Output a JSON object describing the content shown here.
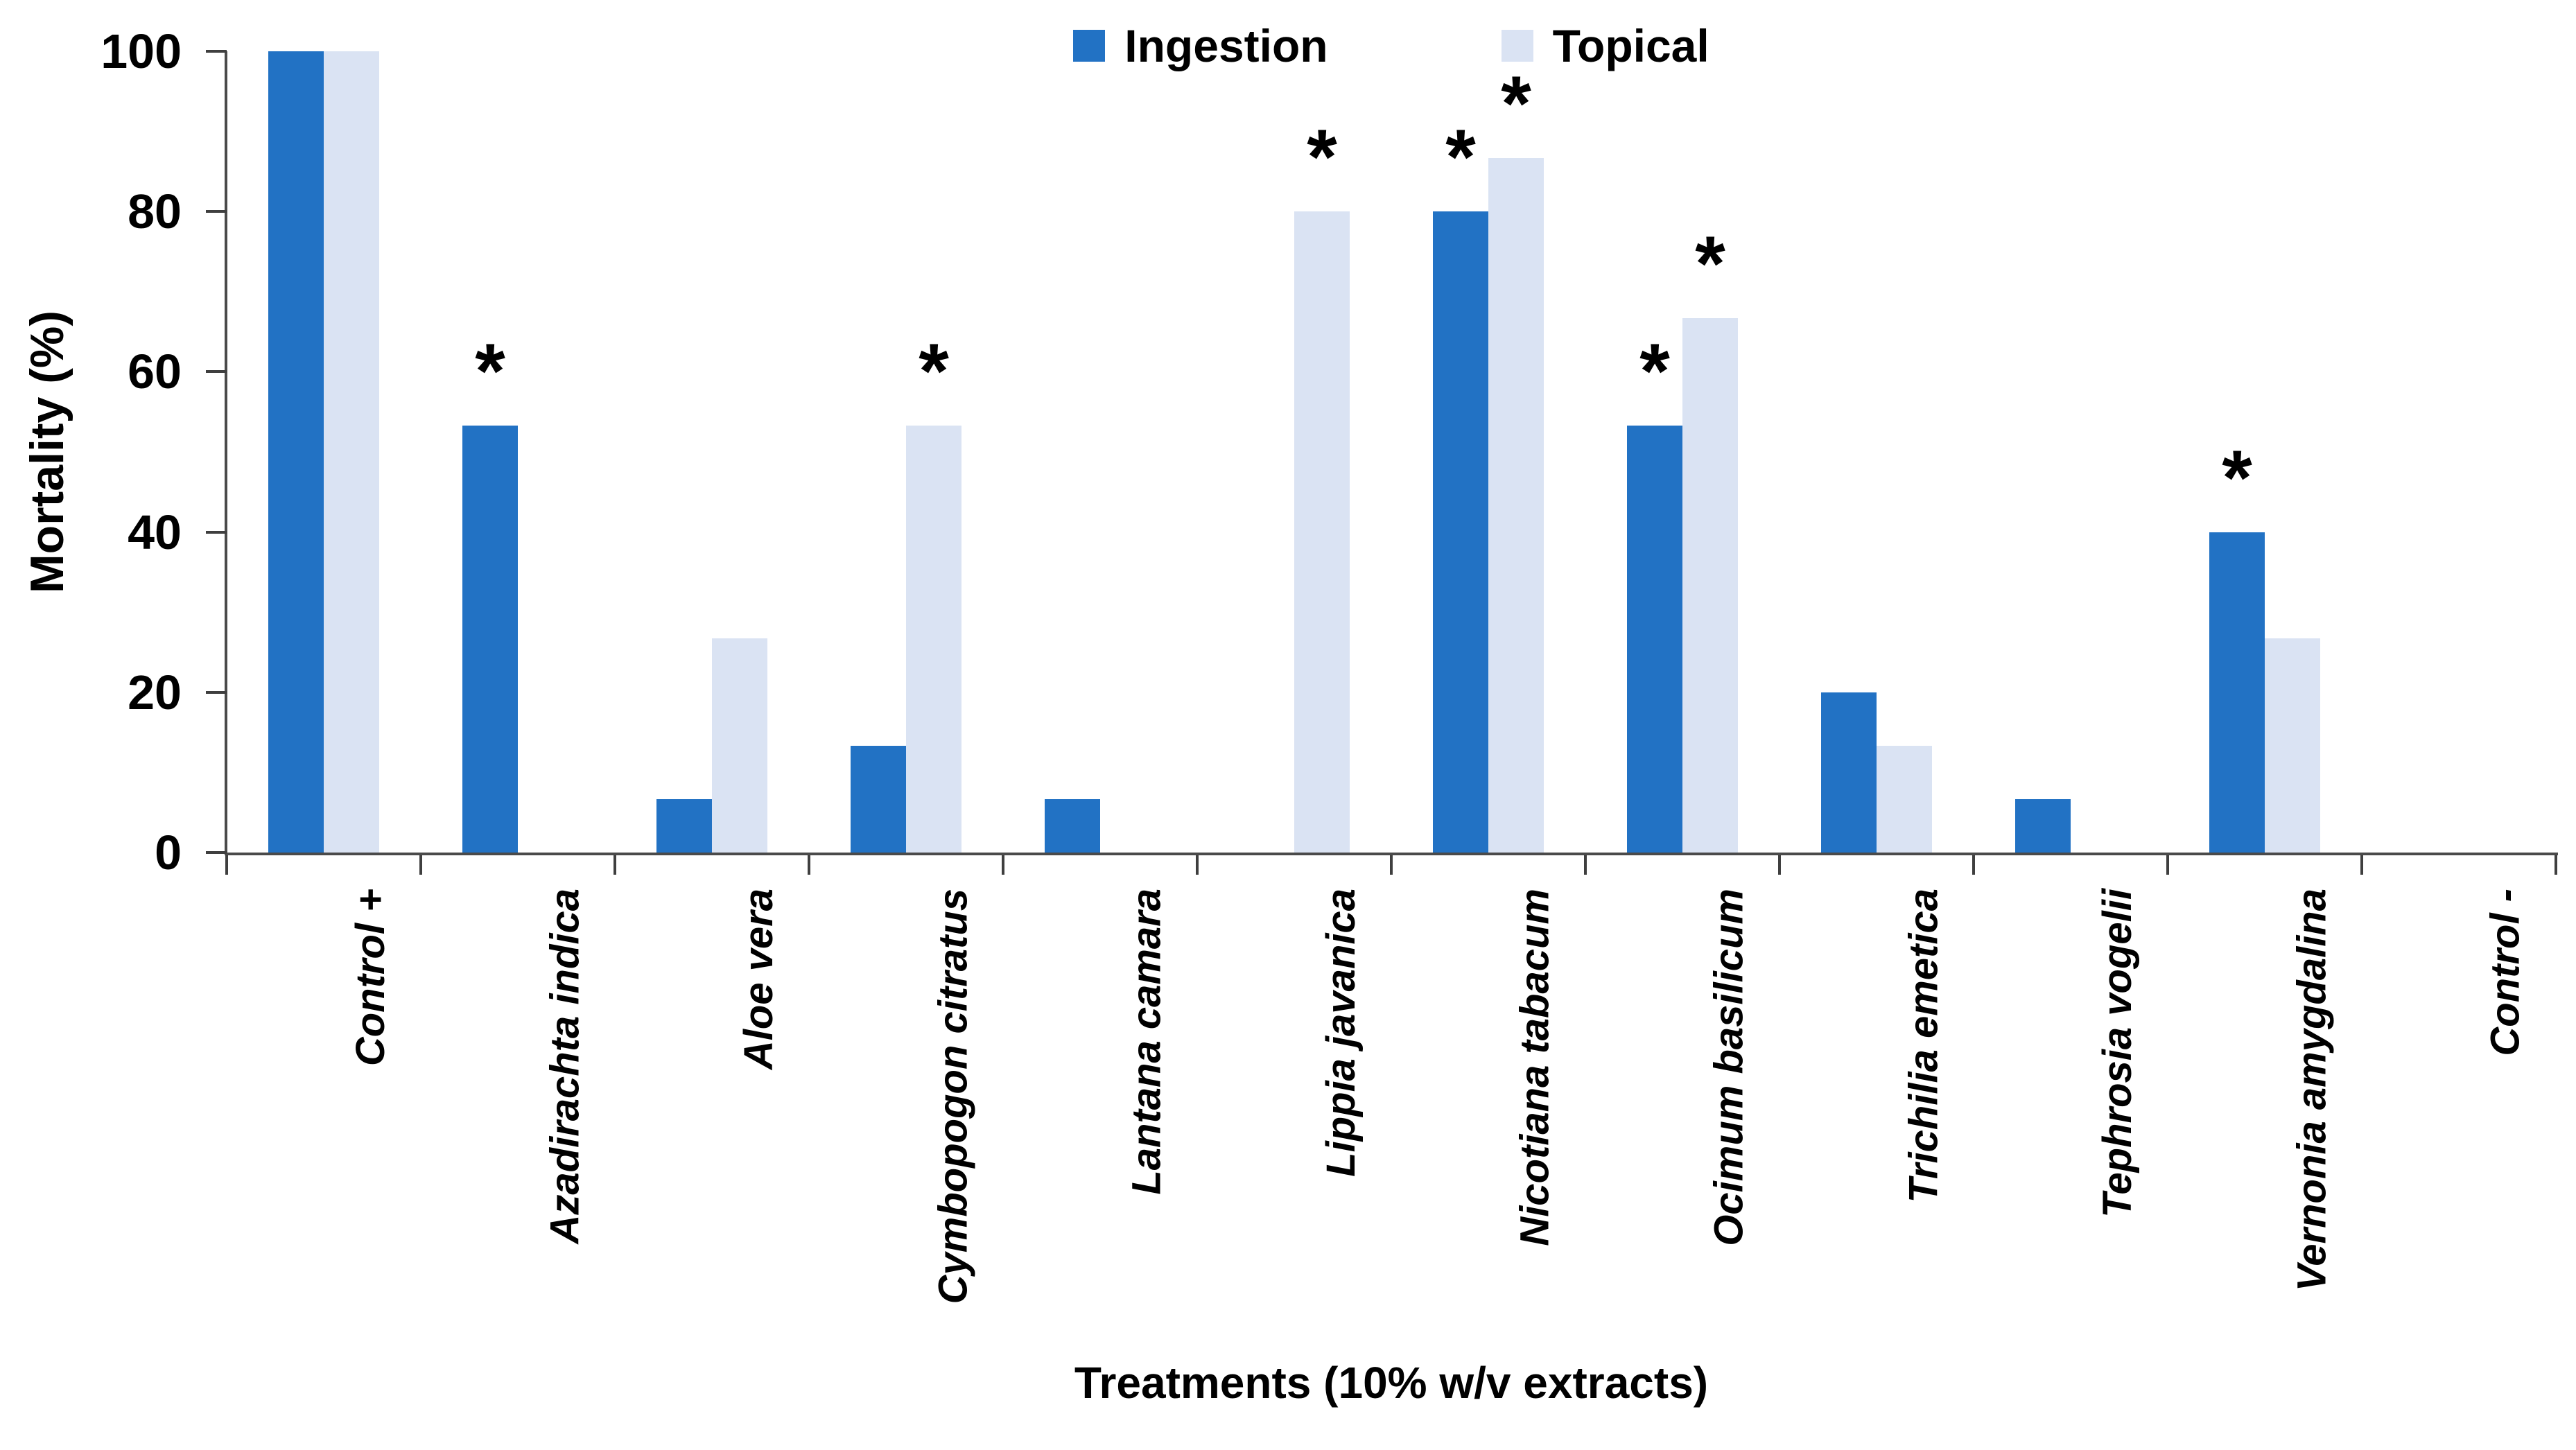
{
  "chart_data": {
    "type": "bar",
    "title": "",
    "xlabel": "Treatments (10% w/v extracts)",
    "ylabel": "Mortality (%)",
    "ylim": [
      0,
      100
    ],
    "yticks": [
      0,
      20,
      40,
      60,
      80,
      100
    ],
    "grid": false,
    "legend_position": "top-center",
    "annotation_symbol": "*",
    "annotation_meaning": "significant bar marked with asterisk",
    "categories": [
      "Control +",
      "Azadirachta indica",
      "Aloe vera",
      "Cymbopogon citratus",
      "Lantana camara",
      "Lippia javanica",
      "Nicotiana tabacum",
      "Ocimum basilicum",
      "Trichilia emetica",
      "Tephrosia vogelii",
      "Vernonia amygdalina",
      "Control -"
    ],
    "series": [
      {
        "name": "Ingestion",
        "color": "#2272C4",
        "values": [
          100,
          53.3,
          6.7,
          13.3,
          6.7,
          0,
          80,
          53.3,
          20,
          6.7,
          40,
          0
        ],
        "significant": [
          true,
          true,
          false,
          false,
          false,
          false,
          true,
          true,
          false,
          false,
          true,
          false
        ]
      },
      {
        "name": "Topical",
        "color": "#DAE3F3",
        "values": [
          100,
          0,
          26.7,
          53.3,
          0,
          80,
          86.7,
          66.7,
          13.3,
          0,
          26.7,
          0
        ],
        "significant": [
          true,
          false,
          false,
          true,
          false,
          true,
          true,
          true,
          false,
          false,
          false,
          false
        ]
      }
    ]
  },
  "colors": {
    "axis": "#4a4a4a",
    "text": "#000000",
    "background": "#FFFFFF"
  }
}
